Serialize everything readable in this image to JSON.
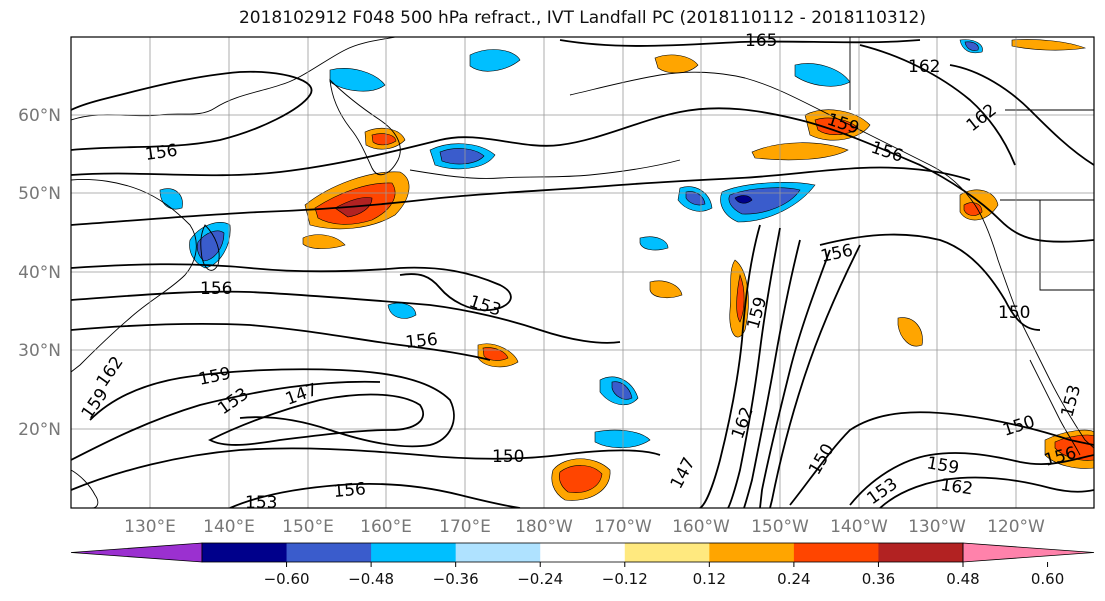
{
  "title": "2018102912 F048 500 hPa refract., IVT Landfall PC (2018110112 - 2018110312)",
  "map": {
    "lat_labels": [
      "60°N",
      "50°N",
      "40°N",
      "30°N",
      "20°N"
    ],
    "lon_labels": [
      "130°E",
      "140°E",
      "150°E",
      "160°E",
      "170°E",
      "180°W",
      "170°W",
      "160°W",
      "150°W",
      "140°W",
      "130°W",
      "120°W"
    ],
    "contour_labels": [
      "165",
      "162",
      "159",
      "156",
      "162",
      "156",
      "156",
      "156",
      "153",
      "156",
      "159",
      "153",
      "147",
      "150",
      "156",
      "153",
      "159",
      "150",
      "159",
      "162",
      "147",
      "150",
      "153",
      "162",
      "159",
      "150",
      "156",
      "153",
      "162"
    ],
    "colors": {
      "land_outline": "#000000",
      "grid": "#999999",
      "axis_text": "#777777"
    }
  },
  "colorbar": {
    "ticks": [
      "−0.60",
      "−0.48",
      "−0.36",
      "−0.24",
      "−0.12",
      "0.12",
      "0.24",
      "0.36",
      "0.48",
      "0.60"
    ],
    "colors": [
      "#9b30d0",
      "#00008b",
      "#3a5ccc",
      "#00bfff",
      "#afe2ff",
      "#ffffff",
      "#ffe97f",
      "#ffa500",
      "#ff4500",
      "#b22222",
      "#ff82ab"
    ]
  }
}
